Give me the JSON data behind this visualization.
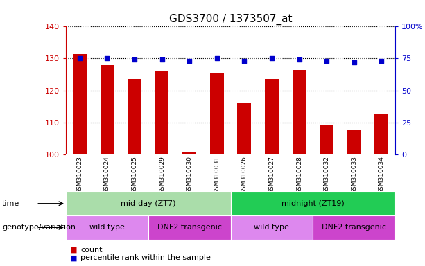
{
  "title": "GDS3700 / 1373507_at",
  "samples": [
    "GSM310023",
    "GSM310024",
    "GSM310025",
    "GSM310029",
    "GSM310030",
    "GSM310031",
    "GSM310026",
    "GSM310027",
    "GSM310028",
    "GSM310032",
    "GSM310033",
    "GSM310034"
  ],
  "bar_values": [
    131.5,
    128.0,
    123.5,
    126.0,
    100.5,
    125.5,
    116.0,
    123.5,
    126.5,
    109.0,
    107.5,
    112.5
  ],
  "dot_values": [
    75,
    75,
    74,
    74,
    73,
    75,
    73,
    75,
    74,
    73,
    72,
    73
  ],
  "ylim_left": [
    100,
    140
  ],
  "ylim_right": [
    0,
    100
  ],
  "yticks_left": [
    100,
    110,
    120,
    130,
    140
  ],
  "yticks_right": [
    0,
    25,
    50,
    75,
    100
  ],
  "yticklabels_right": [
    "0",
    "25",
    "50",
    "75",
    "100%"
  ],
  "bar_color": "#cc0000",
  "dot_color": "#0000cc",
  "bar_baseline": 100,
  "time_groups": [
    {
      "label": "mid-day (ZT7)",
      "start": 0,
      "end": 5,
      "color": "#aaddaa"
    },
    {
      "label": "midnight (ZT19)",
      "start": 6,
      "end": 11,
      "color": "#22cc55"
    }
  ],
  "genotype_groups": [
    {
      "label": "wild type",
      "start": 0,
      "end": 2,
      "color": "#dd88ee"
    },
    {
      "label": "DNF2 transgenic",
      "start": 3,
      "end": 5,
      "color": "#cc44cc"
    },
    {
      "label": "wild type",
      "start": 6,
      "end": 8,
      "color": "#dd88ee"
    },
    {
      "label": "DNF2 transgenic",
      "start": 9,
      "end": 11,
      "color": "#cc44cc"
    }
  ],
  "legend_items": [
    {
      "label": "count",
      "color": "#cc0000"
    },
    {
      "label": "percentile rank within the sample",
      "color": "#0000cc"
    }
  ],
  "time_label": "time",
  "genotype_label": "genotype/variation",
  "tick_label_color_left": "#cc0000",
  "tick_label_color_right": "#0000cc",
  "title_fontsize": 11,
  "xtick_bg_color": "#cccccc"
}
